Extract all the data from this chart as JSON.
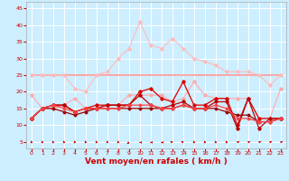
{
  "background_color": "#cceeff",
  "grid_color": "#ffffff",
  "xlabel": "Vent moyen/en rafales ( km/h )",
  "xlabel_color": "#cc0000",
  "xlabel_fontsize": 6.5,
  "ylabel_ticks": [
    5,
    10,
    15,
    20,
    25,
    30,
    35,
    40,
    45
  ],
  "xticks": [
    0,
    1,
    2,
    3,
    4,
    5,
    6,
    7,
    8,
    9,
    10,
    11,
    12,
    13,
    14,
    15,
    16,
    17,
    18,
    19,
    20,
    21,
    22,
    23
  ],
  "xlim": [
    -0.5,
    23.5
  ],
  "ylim": [
    3,
    47
  ],
  "lines": [
    {
      "x": [
        0,
        1,
        2,
        3,
        4,
        5,
        6,
        7,
        8,
        9,
        10,
        11,
        12,
        13,
        14,
        15,
        16,
        17,
        18,
        19,
        20,
        21,
        22,
        23
      ],
      "y": [
        19,
        15,
        15,
        16,
        18,
        15,
        15,
        16,
        16,
        19,
        19,
        19,
        19,
        17,
        18,
        23,
        19,
        18,
        18,
        18,
        18,
        12,
        12,
        21
      ],
      "color": "#ffaaaa",
      "lw": 0.8,
      "marker": "D",
      "ms": 1.8,
      "zorder": 3
    },
    {
      "x": [
        0,
        1,
        2,
        3,
        4,
        5,
        6,
        7,
        8,
        9,
        10,
        11,
        12,
        13,
        14,
        15,
        16,
        17,
        18,
        19,
        20,
        21,
        22,
        23
      ],
      "y": [
        25,
        25,
        25,
        25,
        21,
        20,
        25,
        26,
        30,
        33,
        41,
        34,
        33,
        36,
        33,
        30,
        29,
        28,
        26,
        26,
        26,
        25,
        22,
        25
      ],
      "color": "#ffbbbb",
      "lw": 0.8,
      "marker": "D",
      "ms": 1.8,
      "zorder": 3
    },
    {
      "x": [
        0,
        1,
        2,
        3,
        4,
        5,
        6,
        7,
        8,
        9,
        10,
        11,
        12,
        13,
        14,
        15,
        16,
        17,
        18,
        19,
        20,
        21,
        22,
        23
      ],
      "y": [
        12,
        15,
        16,
        16,
        14,
        15,
        16,
        16,
        16,
        16,
        20,
        21,
        18,
        17,
        23,
        16,
        16,
        18,
        18,
        10,
        18,
        12,
        12,
        12
      ],
      "color": "#dd0000",
      "lw": 0.9,
      "marker": "D",
      "ms": 1.8,
      "zorder": 5
    },
    {
      "x": [
        0,
        1,
        2,
        3,
        4,
        5,
        6,
        7,
        8,
        9,
        10,
        11,
        12,
        13,
        14,
        15,
        16,
        17,
        18,
        19,
        20,
        21,
        22,
        23
      ],
      "y": [
        12,
        15,
        16,
        16,
        14,
        15,
        15,
        16,
        16,
        16,
        19,
        16,
        15,
        16,
        17,
        15,
        15,
        17,
        17,
        9,
        18,
        9,
        12,
        12
      ],
      "color": "#bb0000",
      "lw": 0.9,
      "marker": "D",
      "ms": 1.8,
      "zorder": 5
    },
    {
      "x": [
        0,
        1,
        2,
        3,
        4,
        5,
        6,
        7,
        8,
        9,
        10,
        11,
        12,
        13,
        14,
        15,
        16,
        17,
        18,
        19,
        20,
        21,
        22,
        23
      ],
      "y": [
        12,
        15,
        15,
        14,
        13,
        14,
        15,
        15,
        15,
        15,
        15,
        15,
        15,
        15,
        16,
        15,
        15,
        15,
        14,
        13,
        13,
        11,
        11,
        12
      ],
      "color": "#990000",
      "lw": 0.9,
      "marker": "D",
      "ms": 1.5,
      "zorder": 5
    },
    {
      "x": [
        0,
        1,
        2,
        3,
        4,
        5,
        6,
        7,
        8,
        9,
        10,
        11,
        12,
        13,
        14,
        15,
        16,
        17,
        18,
        19,
        20,
        21,
        22,
        23
      ],
      "y": [
        12,
        15,
        16,
        15,
        14,
        15,
        15,
        15,
        15,
        16,
        16,
        16,
        15,
        15,
        16,
        15,
        15,
        16,
        15,
        12,
        12,
        11,
        11,
        12
      ],
      "color": "#ff4444",
      "lw": 0.9,
      "marker": "D",
      "ms": 1.5,
      "zorder": 5
    },
    {
      "x": [
        0,
        1,
        2,
        3,
        4,
        5,
        6,
        7,
        8,
        9,
        10,
        11,
        12,
        13,
        14,
        15,
        16,
        17,
        18,
        19,
        20,
        21,
        22,
        23
      ],
      "y": [
        25,
        25,
        25,
        25,
        25,
        25,
        25,
        25,
        25,
        25,
        25,
        25,
        25,
        25,
        25,
        25,
        25,
        25,
        25,
        25,
        25,
        25,
        25,
        25
      ],
      "color": "#ff9999",
      "lw": 1.2,
      "marker": null,
      "ms": 0,
      "zorder": 2
    }
  ],
  "arrow_angles": [
    0,
    0,
    0,
    0,
    0,
    0,
    0,
    0,
    0,
    225,
    270,
    270,
    270,
    315,
    315,
    0,
    0,
    0,
    0,
    45,
    45,
    45,
    45,
    45
  ]
}
